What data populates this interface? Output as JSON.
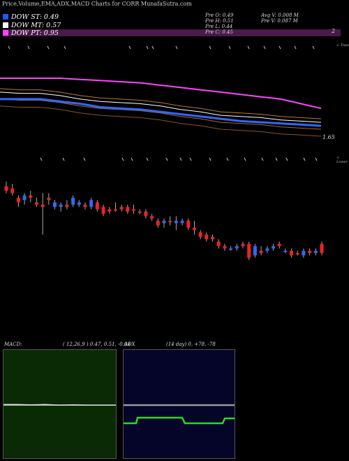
{
  "header": {
    "title": "Price,Volume,EMA,ADX,MACD Charts for CORR MunafaSutra.com"
  },
  "legend": [
    {
      "label": "DOW ST: 0.49",
      "color": "#2255ff"
    },
    {
      "label": "DOW MT: 0.57",
      "color": "#ffffff"
    },
    {
      "label": "DOW PT: 0.95",
      "color": "#ff44ff"
    }
  ],
  "stats": {
    "prev_open": "Pre   O: 0.49",
    "prev_high": "Pre   H: 0.51",
    "prev_low": "Pre   L: 0.44",
    "prev_close": "Pre   C: 0.45",
    "avg_volume": "Avg V: 0.008 M",
    "prev_volume": "Pre   V: 0.087 M"
  },
  "axis": {
    "top_value": "2",
    "price_label": "1.65",
    "topo_label": "< Topo",
    "lower_label": "< Lower"
  },
  "macd": {
    "title": "MACD:",
    "params": "( 12,26,9 ) 0.47, 0.51, -0.04"
  },
  "adx": {
    "title": "ADX",
    "params": "(14  day) 0, +78, -78"
  },
  "colors": {
    "up": "#3366ff",
    "down": "#ee2222",
    "ema_long": "#ff44ff",
    "ema_mid": "#cc7711",
    "macd_bg": "#0a2a05",
    "adx_bg": "#05052a",
    "adx_line": "#22dd22"
  },
  "chart_data": [
    {
      "type": "line",
      "name": "price-ema",
      "series": [
        {
          "name": "DOW PT",
          "values": [
            1.83,
            1.83,
            1.83,
            1.83,
            1.825,
            1.82,
            1.815,
            1.81,
            1.8,
            1.79,
            1.78,
            1.77,
            1.76,
            1.75,
            1.74,
            1.72,
            1.7
          ]
        },
        {
          "name": "DOW MT",
          "values": [
            1.77,
            1.765,
            1.765,
            1.755,
            1.74,
            1.73,
            1.725,
            1.72,
            1.71,
            1.695,
            1.685,
            1.67,
            1.665,
            1.66,
            1.65,
            1.645,
            1.64
          ]
        },
        {
          "name": "DOW ST",
          "values": [
            1.74,
            1.74,
            1.74,
            1.73,
            1.72,
            1.705,
            1.7,
            1.695,
            1.685,
            1.675,
            1.665,
            1.655,
            1.645,
            1.64,
            1.635,
            1.63,
            1.625
          ]
        }
      ],
      "y_axis_label": "1.65"
    },
    {
      "type": "candlestick",
      "name": "daily-candles",
      "candles": [
        {
          "o": 0.93,
          "c": 0.95,
          "h": 0.97,
          "l": 0.92,
          "d": "down"
        },
        {
          "o": 0.94,
          "c": 0.92,
          "h": 0.96,
          "l": 0.91,
          "d": "down"
        },
        {
          "o": 0.9,
          "c": 0.88,
          "h": 0.91,
          "l": 0.86,
          "d": "down"
        },
        {
          "o": 0.89,
          "c": 0.91,
          "h": 0.92,
          "l": 0.87,
          "d": "up"
        },
        {
          "o": 0.91,
          "c": 0.9,
          "h": 0.93,
          "l": 0.88,
          "d": "down"
        },
        {
          "o": 0.88,
          "c": 0.87,
          "h": 0.9,
          "l": 0.86,
          "d": "down"
        },
        {
          "o": 0.87,
          "c": 0.86,
          "h": 0.92,
          "l": 0.74,
          "d": "down"
        },
        {
          "o": 0.9,
          "c": 0.89,
          "h": 0.92,
          "l": 0.87,
          "d": "down"
        },
        {
          "o": 0.86,
          "c": 0.88,
          "h": 0.89,
          "l": 0.85,
          "d": "up"
        },
        {
          "o": 0.87,
          "c": 0.86,
          "h": 0.88,
          "l": 0.84,
          "d": "up"
        },
        {
          "o": 0.86,
          "c": 0.87,
          "h": 0.89,
          "l": 0.85,
          "d": "down"
        },
        {
          "o": 0.87,
          "c": 0.9,
          "h": 0.91,
          "l": 0.86,
          "d": "up"
        },
        {
          "o": 0.88,
          "c": 0.87,
          "h": 0.89,
          "l": 0.86,
          "d": "up"
        },
        {
          "o": 0.87,
          "c": 0.86,
          "h": 0.88,
          "l": 0.85,
          "d": "down"
        },
        {
          "o": 0.86,
          "c": 0.89,
          "h": 0.9,
          "l": 0.85,
          "d": "up"
        },
        {
          "o": 0.88,
          "c": 0.85,
          "h": 0.89,
          "l": 0.84,
          "d": "down"
        },
        {
          "o": 0.86,
          "c": 0.83,
          "h": 0.87,
          "l": 0.82,
          "d": "down"
        },
        {
          "o": 0.85,
          "c": 0.84,
          "h": 0.86,
          "l": 0.83,
          "d": "down"
        },
        {
          "o": 0.85,
          "c": 0.85,
          "h": 0.88,
          "l": 0.84,
          "d": "down"
        },
        {
          "o": 0.86,
          "c": 0.85,
          "h": 0.87,
          "l": 0.84,
          "d": "down"
        },
        {
          "o": 0.86,
          "c": 0.84,
          "h": 0.87,
          "l": 0.83,
          "d": "down"
        },
        {
          "o": 0.85,
          "c": 0.85,
          "h": 0.87,
          "l": 0.83,
          "d": "down"
        },
        {
          "o": 0.84,
          "c": 0.84,
          "h": 0.85,
          "l": 0.83,
          "d": "down"
        },
        {
          "o": 0.84,
          "c": 0.82,
          "h": 0.85,
          "l": 0.81,
          "d": "down"
        },
        {
          "o": 0.82,
          "c": 0.81,
          "h": 0.83,
          "l": 0.8,
          "d": "down"
        },
        {
          "o": 0.8,
          "c": 0.78,
          "h": 0.81,
          "l": 0.77,
          "d": "down"
        },
        {
          "o": 0.79,
          "c": 0.8,
          "h": 0.81,
          "l": 0.77,
          "d": "up"
        },
        {
          "o": 0.8,
          "c": 0.8,
          "h": 0.82,
          "l": 0.78,
          "d": "down"
        },
        {
          "o": 0.79,
          "c": 0.8,
          "h": 0.82,
          "l": 0.76,
          "d": "up"
        },
        {
          "o": 0.79,
          "c": 0.8,
          "h": 0.81,
          "l": 0.78,
          "d": "up"
        },
        {
          "o": 0.8,
          "c": 0.77,
          "h": 0.81,
          "l": 0.76,
          "d": "down"
        },
        {
          "o": 0.77,
          "c": 0.76,
          "h": 0.8,
          "l": 0.74,
          "d": "down"
        },
        {
          "o": 0.75,
          "c": 0.73,
          "h": 0.76,
          "l": 0.72,
          "d": "down"
        },
        {
          "o": 0.74,
          "c": 0.72,
          "h": 0.75,
          "l": 0.71,
          "d": "down"
        },
        {
          "o": 0.73,
          "c": 0.72,
          "h": 0.74,
          "l": 0.71,
          "d": "down"
        },
        {
          "o": 0.71,
          "c": 0.69,
          "h": 0.72,
          "l": 0.68,
          "d": "down"
        },
        {
          "o": 0.69,
          "c": 0.68,
          "h": 0.7,
          "l": 0.67,
          "d": "down"
        },
        {
          "o": 0.68,
          "c": 0.68,
          "h": 0.69,
          "l": 0.67,
          "d": "up"
        },
        {
          "o": 0.68,
          "c": 0.69,
          "h": 0.7,
          "l": 0.67,
          "d": "up"
        },
        {
          "o": 0.7,
          "c": 0.69,
          "h": 0.71,
          "l": 0.68,
          "d": "down"
        },
        {
          "o": 0.7,
          "c": 0.64,
          "h": 0.71,
          "l": 0.63,
          "d": "down"
        },
        {
          "o": 0.65,
          "c": 0.69,
          "h": 0.7,
          "l": 0.64,
          "d": "up"
        },
        {
          "o": 0.67,
          "c": 0.66,
          "h": 0.69,
          "l": 0.65,
          "d": "down"
        },
        {
          "o": 0.67,
          "c": 0.68,
          "h": 0.69,
          "l": 0.66,
          "d": "up"
        },
        {
          "o": 0.68,
          "c": 0.69,
          "h": 0.7,
          "l": 0.67,
          "d": "up"
        },
        {
          "o": 0.7,
          "c": 0.69,
          "h": 0.71,
          "l": 0.68,
          "d": "down"
        },
        {
          "o": 0.67,
          "c": 0.67,
          "h": 0.68,
          "l": 0.66,
          "d": "up"
        },
        {
          "o": 0.67,
          "c": 0.65,
          "h": 0.68,
          "l": 0.64,
          "d": "down"
        },
        {
          "o": 0.66,
          "c": 0.66,
          "h": 0.67,
          "l": 0.65,
          "d": "down"
        },
        {
          "o": 0.67,
          "c": 0.65,
          "h": 0.68,
          "l": 0.64,
          "d": "up"
        },
        {
          "o": 0.66,
          "c": 0.67,
          "h": 0.68,
          "l": 0.65,
          "d": "down"
        },
        {
          "o": 0.66,
          "c": 0.67,
          "h": 0.68,
          "l": 0.65,
          "d": "up"
        },
        {
          "o": 0.66,
          "c": 0.7,
          "h": 0.71,
          "l": 0.65,
          "d": "down"
        }
      ]
    },
    {
      "type": "line",
      "name": "macd",
      "series": [
        {
          "name": "MACD",
          "values": [
            0.47
          ]
        },
        {
          "name": "Signal",
          "values": [
            0.51
          ]
        },
        {
          "name": "Histogram",
          "values": [
            -0.04
          ]
        }
      ]
    },
    {
      "type": "line",
      "name": "adx",
      "series": [
        {
          "name": "ADX",
          "values": [
            0
          ]
        },
        {
          "name": "+DI",
          "values": [
            78
          ]
        },
        {
          "name": "-DI",
          "values": [
            -78
          ]
        }
      ]
    }
  ]
}
